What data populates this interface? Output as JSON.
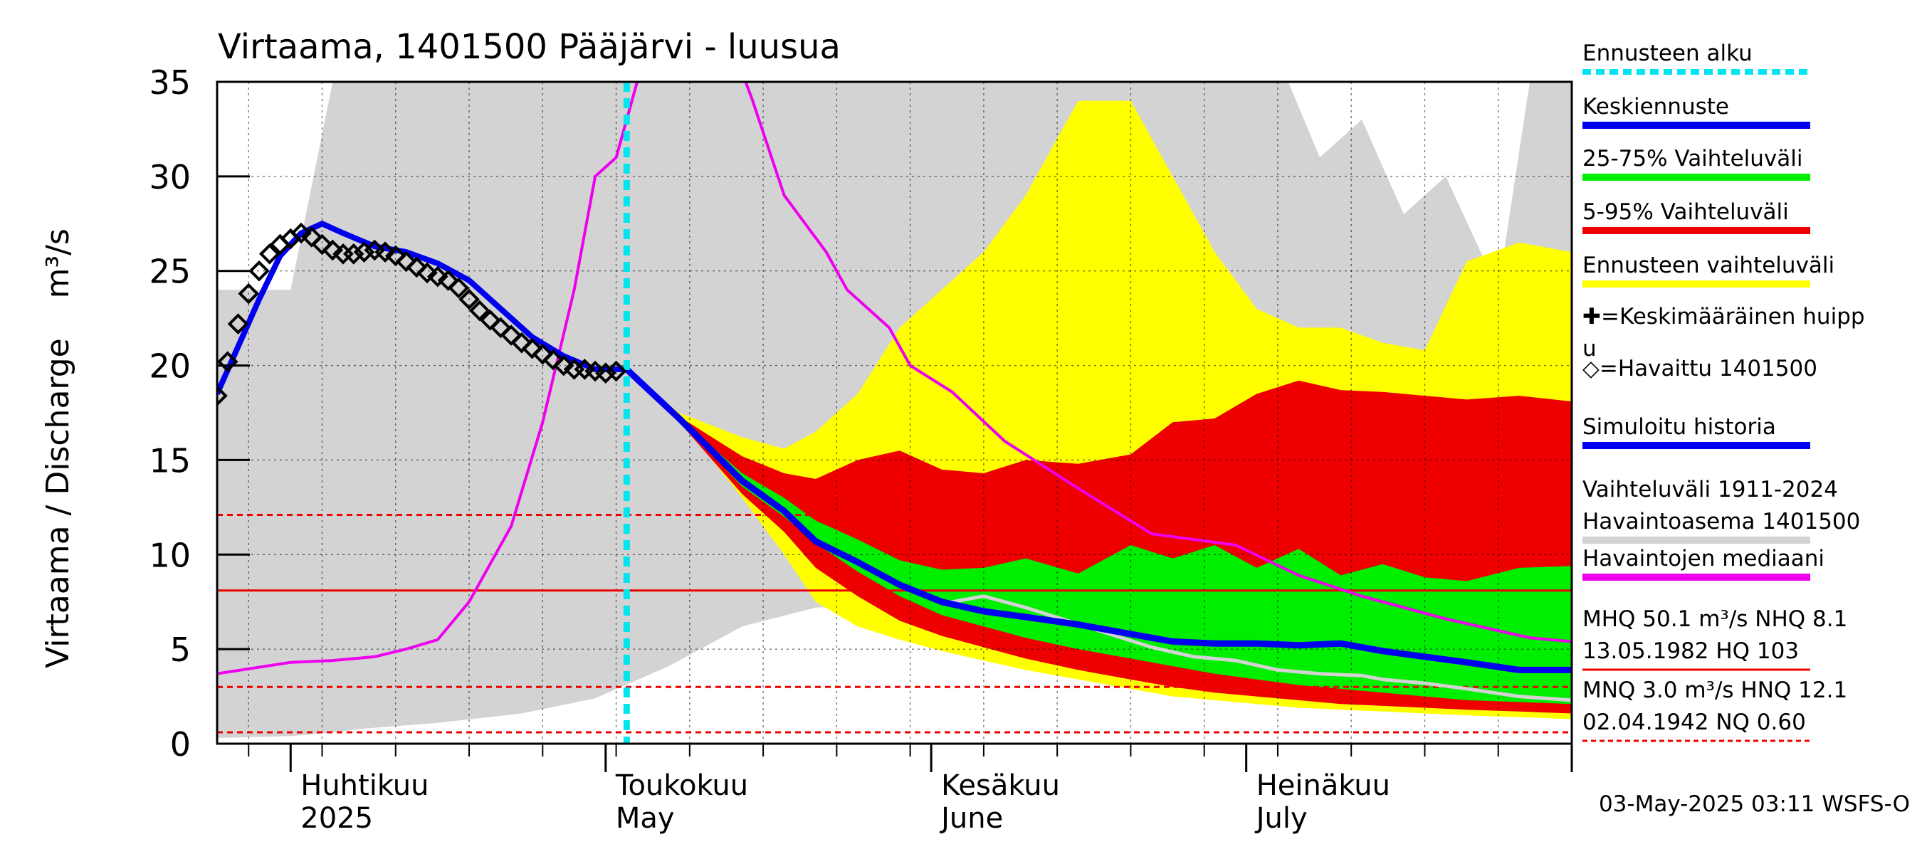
{
  "chart_data": {
    "type": "area",
    "title": "Virtaama, 1401500 Pääjärvi - luusua",
    "ylabel": "Virtaama / Discharge    m³/s",
    "ylim": [
      0,
      35
    ],
    "xlim": [
      "2025-03-25",
      "2025-08-01"
    ],
    "y_ticks": [
      0,
      5,
      10,
      15,
      20,
      25,
      30,
      35
    ],
    "x_month_labels": [
      {
        "date": "2025-04-01",
        "fi": "Huhtikuu",
        "en": "2025"
      },
      {
        "date": "2025-05-01",
        "fi": "Toukokuu",
        "en": "May"
      },
      {
        "date": "2025-06-01",
        "fi": "Kesäkuu",
        "en": "June"
      },
      {
        "date": "2025-07-01",
        "fi": "Heinäkuu",
        "en": "July"
      }
    ],
    "grid": true,
    "legend_position": "right",
    "forecast_start": "2025-05-03",
    "footer": "03-May-2025 03:11 WSFS-O",
    "legend": [
      {
        "label": "Ennusteen alku",
        "color": "#00e5ee",
        "style": "dashed"
      },
      {
        "label": "Keskiennuste",
        "color": "#0000ee",
        "style": "line"
      },
      {
        "label": "25-75% Vaihteluväli",
        "color": "#00ee00",
        "style": "line"
      },
      {
        "label": "5-95% Vaihteluväli",
        "color": "#ee0000",
        "style": "line"
      },
      {
        "label": "Ennusteen vaihteluväli",
        "color": "#ffff00",
        "style": "line"
      },
      {
        "label": "✚=Keskimääräinen huippu",
        "color": "#000000",
        "style": "none"
      },
      {
        "label": "◇=Havaittu 1401500",
        "color": "#000000",
        "style": "none"
      },
      {
        "label": "Simuloitu historia",
        "color": "#0000ee",
        "style": "line"
      },
      {
        "label": "Vaihteluväli 1911-2024\n Havaintoasema 1401500",
        "color": "#d3d3d3",
        "style": "line"
      },
      {
        "label": "Havaintojen mediaani",
        "color": "#ee00ee",
        "style": "line"
      },
      {
        "label": "MHQ 50.1 m³/s NHQ  8.1\n13.05.1982 HQ  103",
        "color": "#ee0000",
        "style": "line"
      },
      {
        "label": "MNQ  3.0 m³/s HNQ 12.1\n02.04.1942 NQ 0.60",
        "color": "#ee0000",
        "style": "dashed"
      }
    ],
    "reference_lines": [
      {
        "name": "MHQ",
        "value": 50.1,
        "style": "solid"
      },
      {
        "name": "NHQ",
        "value": 8.1,
        "style": "solid"
      },
      {
        "name": "HNQ",
        "value": 12.1,
        "style": "dashed"
      },
      {
        "name": "MNQ",
        "value": 3.0,
        "style": "dashed"
      },
      {
        "name": "NQ",
        "value": 0.6,
        "style": "dashed"
      }
    ],
    "series": [
      {
        "key": "hist_range",
        "kind": "band",
        "color": "#d3d3d3",
        "x": [
          "2025-03-25",
          "2025-04-01",
          "2025-04-05",
          "2025-04-08",
          "2025-04-15",
          "2025-04-23",
          "2025-04-30",
          "2025-05-07",
          "2025-05-14",
          "2025-05-21",
          "2025-05-28",
          "2025-06-04",
          "2025-06-11",
          "2025-06-18",
          "2025-06-25",
          "2025-07-02",
          "2025-07-05",
          "2025-07-08",
          "2025-07-12",
          "2025-07-16",
          "2025-07-20",
          "2025-07-25",
          "2025-07-28",
          "2025-08-01"
        ],
        "upper": [
          24,
          24,
          35,
          35,
          35,
          35,
          35,
          35,
          35,
          35,
          35,
          35,
          35,
          35,
          35,
          35,
          35,
          31,
          33,
          28,
          30,
          24,
          35,
          35
        ],
        "lower": [
          0.3,
          0.4,
          0.6,
          0.8,
          1.1,
          1.6,
          2.4,
          4.1,
          6.2,
          7.2,
          7.4,
          7.5,
          7.4,
          7.2,
          6.9,
          6.6,
          6.4,
          6.2,
          5.8,
          5.3,
          4.7,
          3.9,
          3.3,
          2.7
        ]
      },
      {
        "key": "forecast_range",
        "kind": "band",
        "color": "#ffff00",
        "x": [
          "2025-05-03",
          "2025-05-08",
          "2025-05-14",
          "2025-05-18",
          "2025-05-21",
          "2025-05-25",
          "2025-05-29",
          "2025-06-02",
          "2025-06-06",
          "2025-06-10",
          "2025-06-15",
          "2025-06-20",
          "2025-06-24",
          "2025-06-28",
          "2025-07-02",
          "2025-07-06",
          "2025-07-10",
          "2025-07-14",
          "2025-07-18",
          "2025-07-22",
          "2025-07-27",
          "2025-08-01"
        ],
        "upper": [
          19.8,
          17.5,
          16.2,
          15.6,
          16.5,
          18.5,
          22,
          24,
          26,
          29,
          34,
          34,
          30,
          26,
          23,
          22,
          22,
          21.2,
          20.8,
          25.5,
          26.5,
          26
        ],
        "lower": [
          19.8,
          17.2,
          13,
          10,
          7.5,
          6.2,
          5.5,
          4.9,
          4.4,
          3.9,
          3.4,
          2.9,
          2.5,
          2.3,
          2.1,
          1.9,
          1.8,
          1.7,
          1.6,
          1.5,
          1.4,
          1.3
        ]
      },
      {
        "key": "p5_95",
        "kind": "band",
        "color": "#ee0000",
        "x": [
          "2025-05-03",
          "2025-05-08",
          "2025-05-14",
          "2025-05-18",
          "2025-05-21",
          "2025-05-25",
          "2025-05-29",
          "2025-06-02",
          "2025-06-06",
          "2025-06-10",
          "2025-06-15",
          "2025-06-20",
          "2025-06-24",
          "2025-06-28",
          "2025-07-02",
          "2025-07-06",
          "2025-07-10",
          "2025-07-14",
          "2025-07-18",
          "2025-07-22",
          "2025-07-27",
          "2025-08-01"
        ],
        "upper": [
          19.8,
          17.3,
          15.2,
          14.3,
          14,
          15,
          15.5,
          14.5,
          14.3,
          15,
          14.8,
          15.3,
          17,
          17.2,
          18.5,
          19.2,
          18.7,
          18.6,
          18.4,
          18.2,
          18.4,
          18.1
        ],
        "lower": [
          19.8,
          17.0,
          13.2,
          11.2,
          9.3,
          7.8,
          6.5,
          5.7,
          5.1,
          4.5,
          3.9,
          3.4,
          3.0,
          2.7,
          2.5,
          2.3,
          2.1,
          2.0,
          1.9,
          1.8,
          1.7,
          1.6
        ]
      },
      {
        "key": "p25_75",
        "kind": "band",
        "color": "#00ee00",
        "x": [
          "2025-05-03",
          "2025-05-08",
          "2025-05-14",
          "2025-05-18",
          "2025-05-21",
          "2025-05-25",
          "2025-05-29",
          "2025-06-02",
          "2025-06-06",
          "2025-06-10",
          "2025-06-15",
          "2025-06-20",
          "2025-06-24",
          "2025-06-28",
          "2025-07-02",
          "2025-07-06",
          "2025-07-10",
          "2025-07-14",
          "2025-07-18",
          "2025-07-22",
          "2025-07-27",
          "2025-08-01"
        ],
        "upper": [
          19.8,
          17.2,
          14.3,
          13.0,
          11.8,
          10.8,
          9.7,
          9.2,
          9.3,
          9.8,
          9.0,
          10.5,
          9.8,
          10.5,
          9.3,
          10.3,
          8.9,
          9.5,
          8.8,
          8.6,
          9.3,
          9.4
        ],
        "lower": [
          19.8,
          17.1,
          13.6,
          12.0,
          10.6,
          9.1,
          7.8,
          6.8,
          6.2,
          5.6,
          5.0,
          4.5,
          4.1,
          3.7,
          3.4,
          3.1,
          2.9,
          2.7,
          2.5,
          2.3,
          2.2,
          2.1
        ]
      },
      {
        "key": "median_obs",
        "kind": "line",
        "color": "#ee00ee",
        "x": [
          "2025-03-25",
          "2025-04-01",
          "2025-04-05",
          "2025-04-09",
          "2025-04-12",
          "2025-04-15",
          "2025-04-18",
          "2025-04-22",
          "2025-04-25",
          "2025-04-28",
          "2025-04-30",
          "2025-05-02",
          "2025-05-04",
          "2025-05-05",
          "2025-05-06",
          "2025-05-14",
          "2025-05-15",
          "2025-05-18",
          "2025-05-22",
          "2025-05-24",
          "2025-05-28",
          "2025-05-30",
          "2025-06-03",
          "2025-06-08",
          "2025-06-15",
          "2025-06-22",
          "2025-06-30",
          "2025-07-06",
          "2025-07-12",
          "2025-07-20",
          "2025-07-28",
          "2025-08-01"
        ],
        "values": [
          3.7,
          4.3,
          4.4,
          4.6,
          5.0,
          5.5,
          7.5,
          11.5,
          17.0,
          24.0,
          30.0,
          31.0,
          35,
          35.5,
          38,
          35.5,
          34,
          29,
          26,
          24,
          22,
          20,
          18.6,
          16,
          13.5,
          11.1,
          10.5,
          8.9,
          7.8,
          6.6,
          5.6,
          5.4
        ]
      },
      {
        "key": "mean_forecast",
        "kind": "line",
        "color": "#0000ee",
        "x": [
          "2025-05-03",
          "2025-05-08",
          "2025-05-14",
          "2025-05-18",
          "2025-05-21",
          "2025-05-25",
          "2025-05-29",
          "2025-06-02",
          "2025-06-06",
          "2025-06-10",
          "2025-06-15",
          "2025-06-20",
          "2025-06-24",
          "2025-06-28",
          "2025-07-02",
          "2025-07-06",
          "2025-07-10",
          "2025-07-14",
          "2025-07-18",
          "2025-07-22",
          "2025-07-27",
          "2025-08-01"
        ],
        "values": [
          19.8,
          17.2,
          13.9,
          12.3,
          10.7,
          9.6,
          8.4,
          7.5,
          7.0,
          6.7,
          6.3,
          5.8,
          5.4,
          5.3,
          5.3,
          5.2,
          5.3,
          4.9,
          4.6,
          4.3,
          3.9,
          3.9
        ]
      },
      {
        "key": "simulated_hist",
        "kind": "line",
        "color": "#0000ee",
        "x": [
          "2025-03-25",
          "2025-03-27",
          "2025-03-29",
          "2025-03-31",
          "2025-04-02",
          "2025-04-04",
          "2025-04-06",
          "2025-04-09",
          "2025-04-12",
          "2025-04-15",
          "2025-04-18",
          "2025-04-21",
          "2025-04-24",
          "2025-04-27",
          "2025-04-30",
          "2025-05-03"
        ],
        "values": [
          18.5,
          21.0,
          23.5,
          25.8,
          27.0,
          27.5,
          27.0,
          26.3,
          26.0,
          25.4,
          24.5,
          23.0,
          21.5,
          20.5,
          19.8,
          19.8
        ]
      },
      {
        "key": "observed",
        "kind": "markers",
        "color": "#000000",
        "x": [
          "2025-03-25",
          "2025-03-26",
          "2025-03-27",
          "2025-03-28",
          "2025-03-29",
          "2025-03-30",
          "2025-03-31",
          "2025-04-01",
          "2025-04-02",
          "2025-04-03",
          "2025-04-04",
          "2025-04-05",
          "2025-04-06",
          "2025-04-07",
          "2025-04-08",
          "2025-04-09",
          "2025-04-10",
          "2025-04-11",
          "2025-04-12",
          "2025-04-13",
          "2025-04-14",
          "2025-04-15",
          "2025-04-16",
          "2025-04-17",
          "2025-04-18",
          "2025-04-19",
          "2025-04-20",
          "2025-04-21",
          "2025-04-22",
          "2025-04-23",
          "2025-04-24",
          "2025-04-25",
          "2025-04-26",
          "2025-04-27",
          "2025-04-28",
          "2025-04-29",
          "2025-04-30",
          "2025-05-01",
          "2025-05-02"
        ],
        "values": [
          18.4,
          20.2,
          22.2,
          23.8,
          25.0,
          25.9,
          26.4,
          26.7,
          27.0,
          26.8,
          26.4,
          26.1,
          25.9,
          25.9,
          26.0,
          26.1,
          26.0,
          25.8,
          25.5,
          25.2,
          24.9,
          24.7,
          24.5,
          24.1,
          23.5,
          22.9,
          22.4,
          22.0,
          21.6,
          21.2,
          20.9,
          20.6,
          20.3,
          20.0,
          19.8,
          19.8,
          19.7,
          19.6,
          19.7
        ]
      },
      {
        "key": "median_forecast_grey",
        "kind": "line",
        "color": "#d3d3d3",
        "x": [
          "2025-06-02",
          "2025-06-06",
          "2025-06-10",
          "2025-06-14",
          "2025-06-18",
          "2025-06-22",
          "2025-06-26",
          "2025-06-30",
          "2025-07-04",
          "2025-07-08",
          "2025-07-12",
          "2025-07-14",
          "2025-07-18",
          "2025-07-22",
          "2025-07-27",
          "2025-08-01"
        ],
        "values": [
          7.4,
          7.8,
          7.2,
          6.5,
          5.8,
          5.1,
          4.6,
          4.4,
          3.9,
          3.7,
          3.6,
          3.4,
          3.2,
          2.9,
          2.5,
          2.3
        ]
      }
    ]
  }
}
